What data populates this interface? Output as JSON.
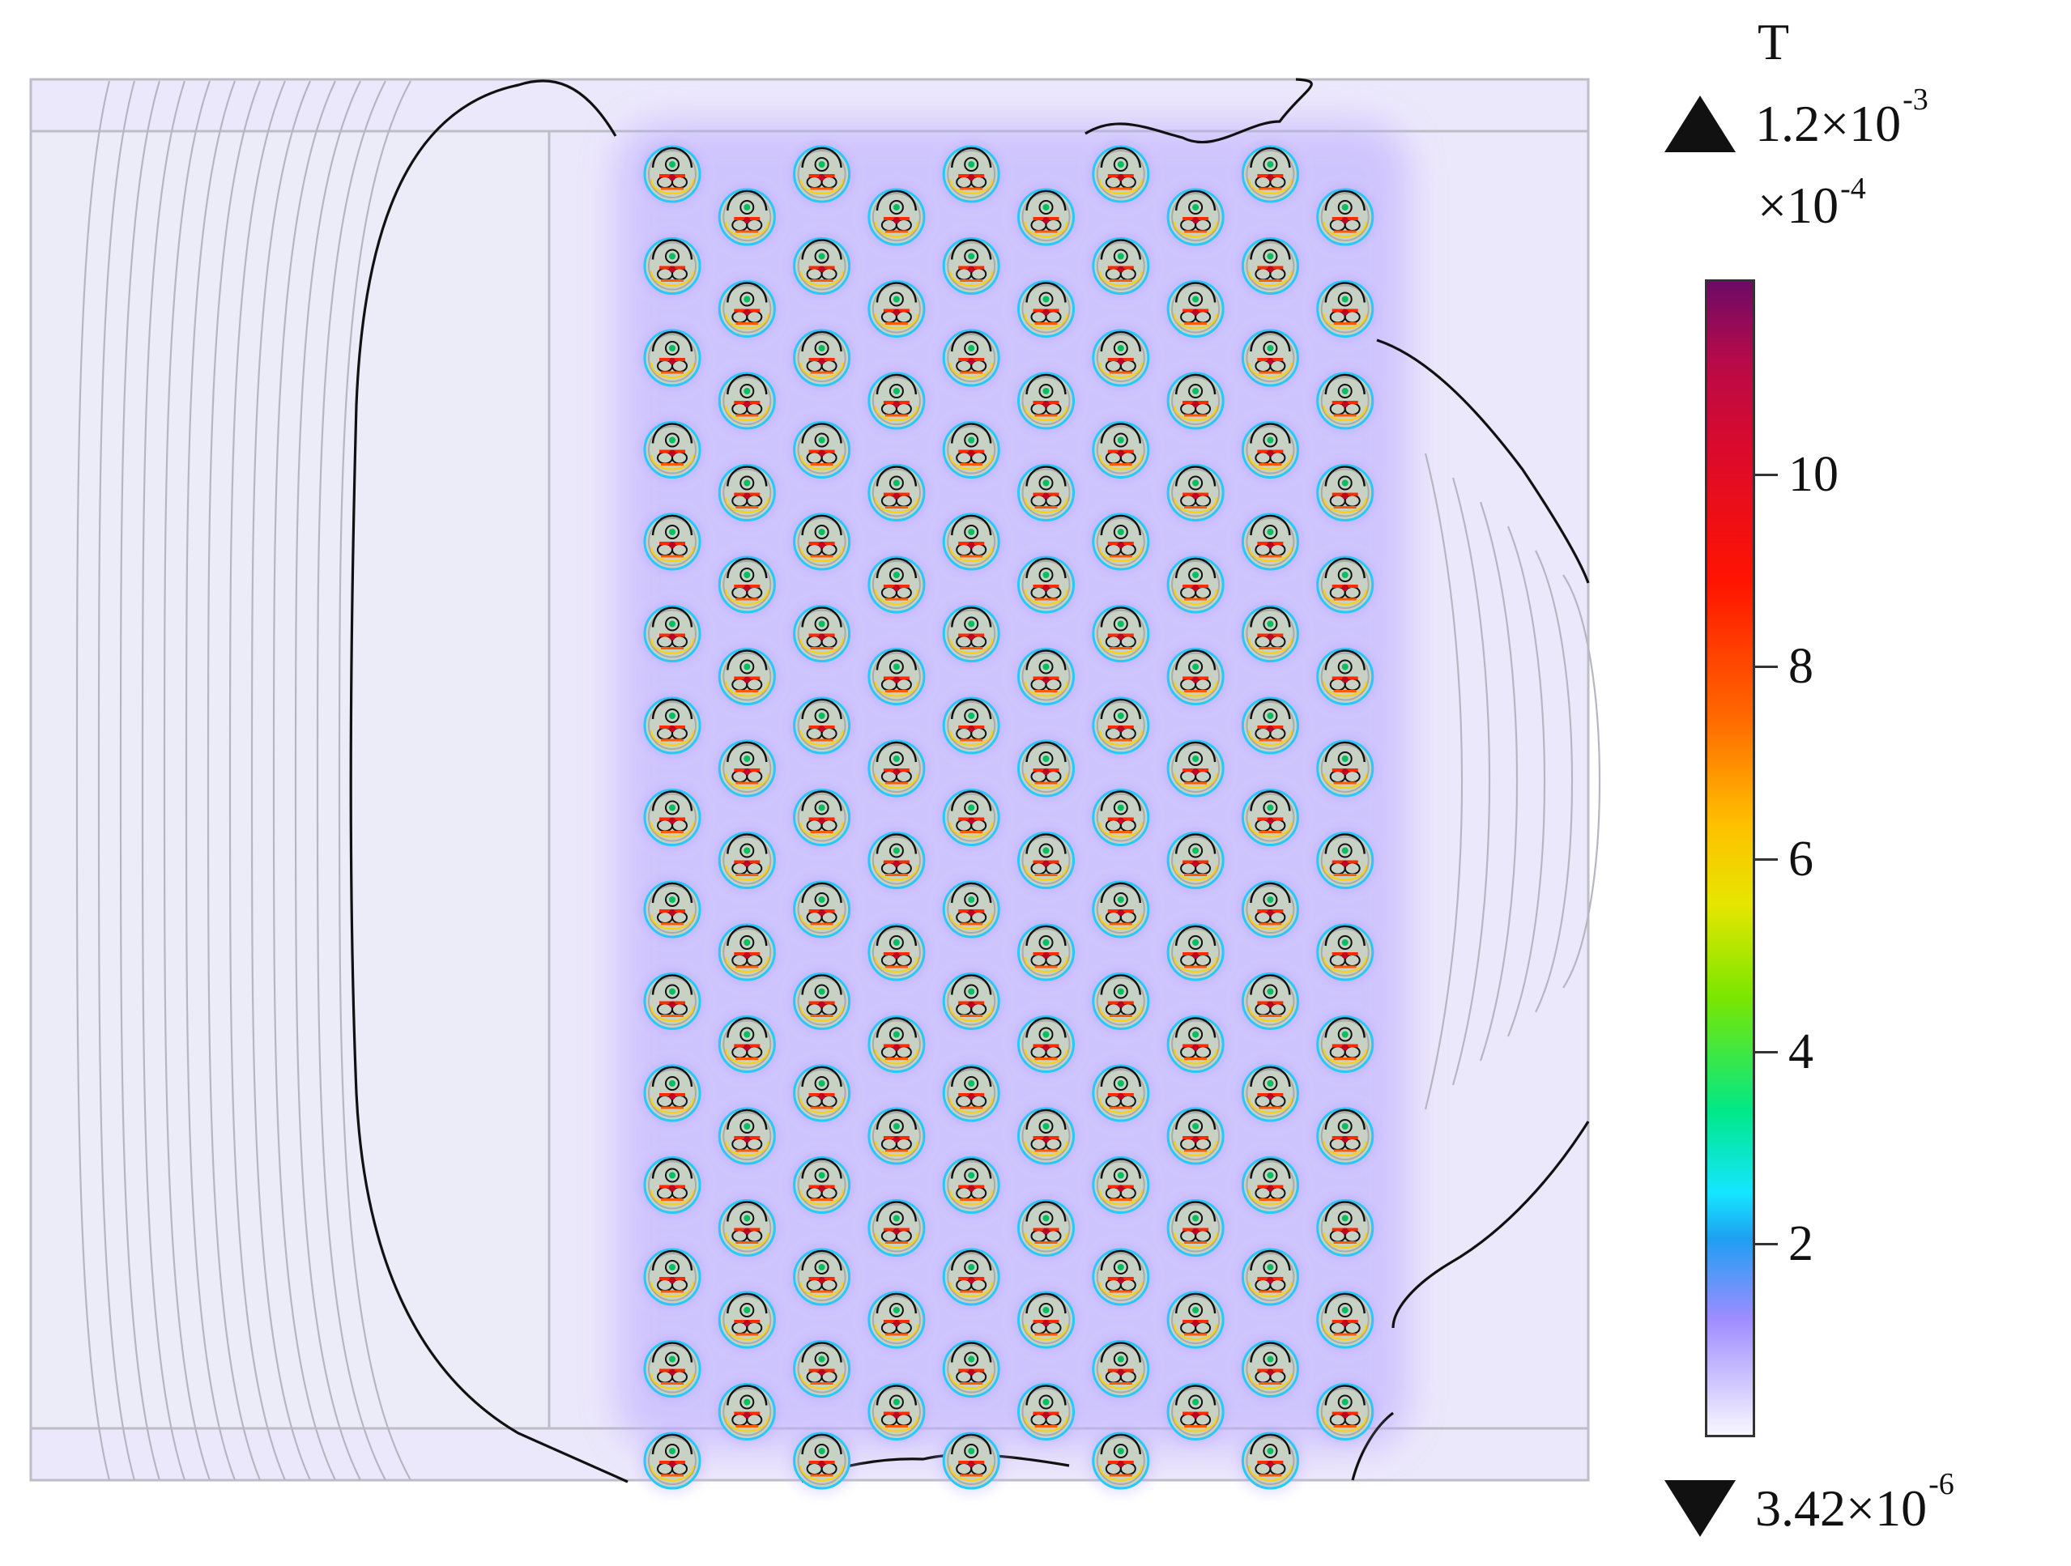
{
  "colorbar": {
    "unit": "T",
    "max_label": "1.2×10",
    "max_exp": "-3",
    "scale_label": "×10",
    "scale_exp": "-4",
    "min_label": "3.42×10",
    "min_exp": "-6",
    "ticks": [
      "10",
      "8",
      "6",
      "4",
      "2"
    ]
  },
  "colors": {
    "background_field": "#e9e4fb",
    "contour_gray": "#b4b4c0",
    "contour_black": "#111111",
    "conductor_fill": "#c8d2c4"
  },
  "conductor_grid": {
    "columns": 10,
    "rows_by_column": [
      15,
      14,
      15,
      14,
      15,
      14,
      15,
      14,
      15,
      14
    ]
  }
}
